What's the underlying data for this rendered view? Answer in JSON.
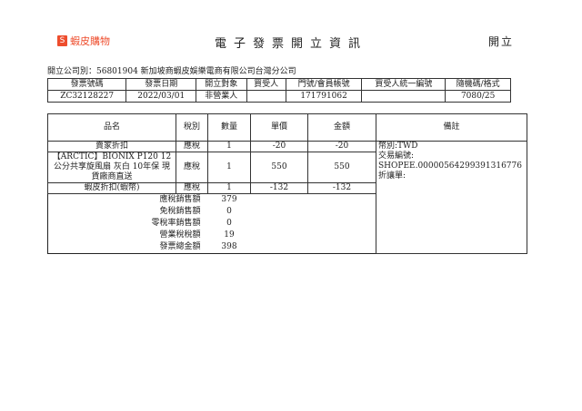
{
  "header": {
    "logo_text": "蝦皮購物",
    "logo_icon": "shopee-bag-icon",
    "title": "電子發票開立資訊",
    "status": "開立",
    "brand_color": "#ee4d2d"
  },
  "company": "開立公司別：56801904 新加坡商蝦皮娛樂電商有限公司台灣分公司",
  "invoice": {
    "headers": [
      "發票號碼",
      "發票日期",
      "開立對象",
      "買受人",
      "門號/會員帳號",
      "買受人統一編號",
      "隨機碼/格式"
    ],
    "values": [
      "ZC32128227",
      "2022/03/01",
      "非營業人",
      "",
      "171791062",
      "",
      "7080/25"
    ]
  },
  "items": {
    "headers": [
      "品名",
      "稅別",
      "數量",
      "單價",
      "金額",
      "備註"
    ],
    "rows": [
      [
        "賣家折扣",
        "應稅",
        "1",
        "-20",
        "-20"
      ],
      [
        "【ARCTIC】BIONIX P120 12公分共享旋風扇 灰白 10年保 現貨廠商直送",
        "應稅",
        "1",
        "550",
        "550"
      ],
      [
        "蝦皮折扣(蝦幣)",
        "應稅",
        "1",
        "-132",
        "-132"
      ]
    ],
    "remarks": [
      "幣別:TWD",
      "交易編號:",
      "SHOPEE.00000564299391316776",
      "折讓單:"
    ],
    "summary": [
      [
        "應稅銷售額",
        "379"
      ],
      [
        "免稅銷售額",
        "0"
      ],
      [
        "零稅率銷售額",
        "0"
      ],
      [
        "營業稅稅額",
        "19"
      ],
      [
        "發票總金額",
        "398"
      ]
    ]
  }
}
